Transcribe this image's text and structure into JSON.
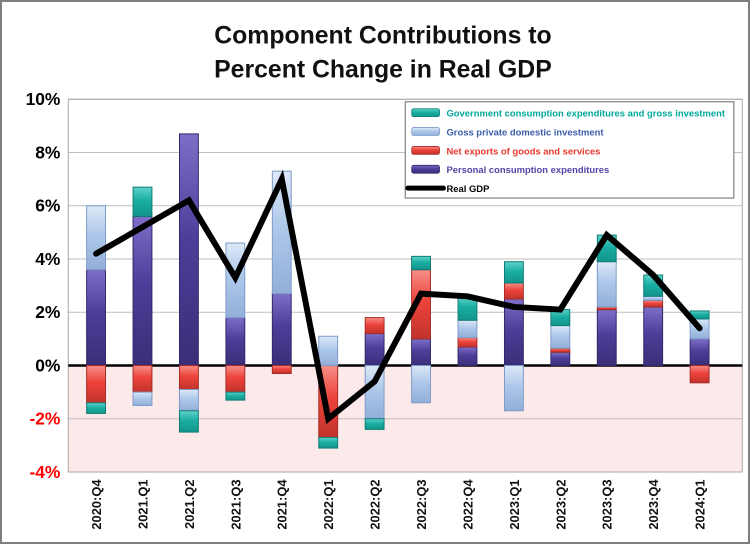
{
  "chart_data": {
    "type": "bar",
    "subtype": "stacked-column-with-line",
    "title": "Component Contributions to Percent Change in Real GDP",
    "title_lines": [
      "Component Contributions to",
      "Percent Change in Real GDP"
    ],
    "categories": [
      "2020:Q4",
      "2021.Q1",
      "2021.Q2",
      "2021:Q3",
      "2021:Q4",
      "2022:Q1",
      "2022:Q2",
      "2022:Q3",
      "2022:Q4",
      "2023:Q1",
      "2023:Q2",
      "2023:Q3",
      "2023:Q4",
      "2024:Q1"
    ],
    "unit": "percentage points",
    "ylim": [
      -4,
      10
    ],
    "y_ticks": [
      10,
      8,
      6,
      4,
      2,
      0,
      -2,
      -4
    ],
    "y_tick_labels": [
      "10%",
      "8%",
      "6%",
      "4%",
      "2%",
      "0%",
      "-2%",
      "-4%"
    ],
    "positive_tick_color": "#000000",
    "negative_tick_color": "#FF0000",
    "negative_region_color": "#FCE9EA",
    "grid": true,
    "gridline_color": "#BFBFBF",
    "plot_border_color": "#A6A6A6",
    "legend_position": "top-right",
    "series": [
      {
        "key": "pce",
        "name": "Personal consumption expenditures",
        "color": "#4D3E99",
        "color_light": "#7E6EC8",
        "color_dark": "#3A2E78",
        "color_stroke": "#322768",
        "values": [
          3.6,
          5.6,
          8.7,
          1.8,
          2.7,
          0.0,
          1.2,
          1.0,
          0.7,
          2.5,
          0.5,
          2.1,
          2.2,
          1.0
        ]
      },
      {
        "key": "net-exports",
        "name": "Net exports of goods and services",
        "color": "#ED433B",
        "color_light": "#F68F88",
        "color_dark": "#C1332C",
        "color_stroke": "#A62B25",
        "values": [
          -1.4,
          -1.0,
          -0.9,
          -1.0,
          -0.3,
          -2.7,
          0.6,
          2.6,
          0.35,
          0.6,
          0.15,
          0.1,
          0.25,
          -0.65
        ]
      },
      {
        "key": "investment",
        "name": "Gross private domestic investment",
        "color": "#AEC8EA",
        "color_light": "#DCE8F7",
        "color_dark": "#93AFD9",
        "color_stroke": "#7E9AC8",
        "values": [
          2.4,
          -0.5,
          -0.8,
          2.8,
          4.6,
          1.1,
          -2.0,
          -1.4,
          0.65,
          -1.7,
          0.85,
          1.7,
          0.15,
          0.75
        ]
      },
      {
        "key": "government",
        "name": "Government consumption expenditures and gross investment",
        "color": "#1BAEA3",
        "color_light": "#5FD2C8",
        "color_dark": "#12948B",
        "color_stroke": "#0F7C74",
        "values": [
          -0.4,
          1.1,
          -0.8,
          -0.3,
          0.0,
          -0.4,
          -0.4,
          0.5,
          0.9,
          0.8,
          0.6,
          1.0,
          0.8,
          0.3
        ]
      }
    ],
    "line_series": {
      "key": "real-gdp",
      "name": "Real GDP",
      "color": "#000000",
      "values": [
        4.2,
        5.2,
        6.2,
        3.3,
        7.0,
        -2.0,
        -0.6,
        2.7,
        2.6,
        2.2,
        2.1,
        4.9,
        3.4,
        1.4
      ]
    },
    "legend": [
      {
        "label": "Government consumption expenditures and gross investment",
        "swatch": "bar",
        "series_index": 3,
        "text_color": "#00A89C"
      },
      {
        "label": "Gross private domestic investment",
        "swatch": "bar",
        "series_index": 2,
        "text_color": "#3A5CA8"
      },
      {
        "label": "Net exports of goods and services",
        "swatch": "bar",
        "series_index": 1,
        "text_color": "#E8372E"
      },
      {
        "label": "Personal consumption expenditures",
        "swatch": "bar",
        "series_index": 0,
        "text_color": "#5345A8"
      },
      {
        "label": "Real GDP",
        "swatch": "line",
        "series_index": -1,
        "text_color": "#000000"
      }
    ]
  }
}
